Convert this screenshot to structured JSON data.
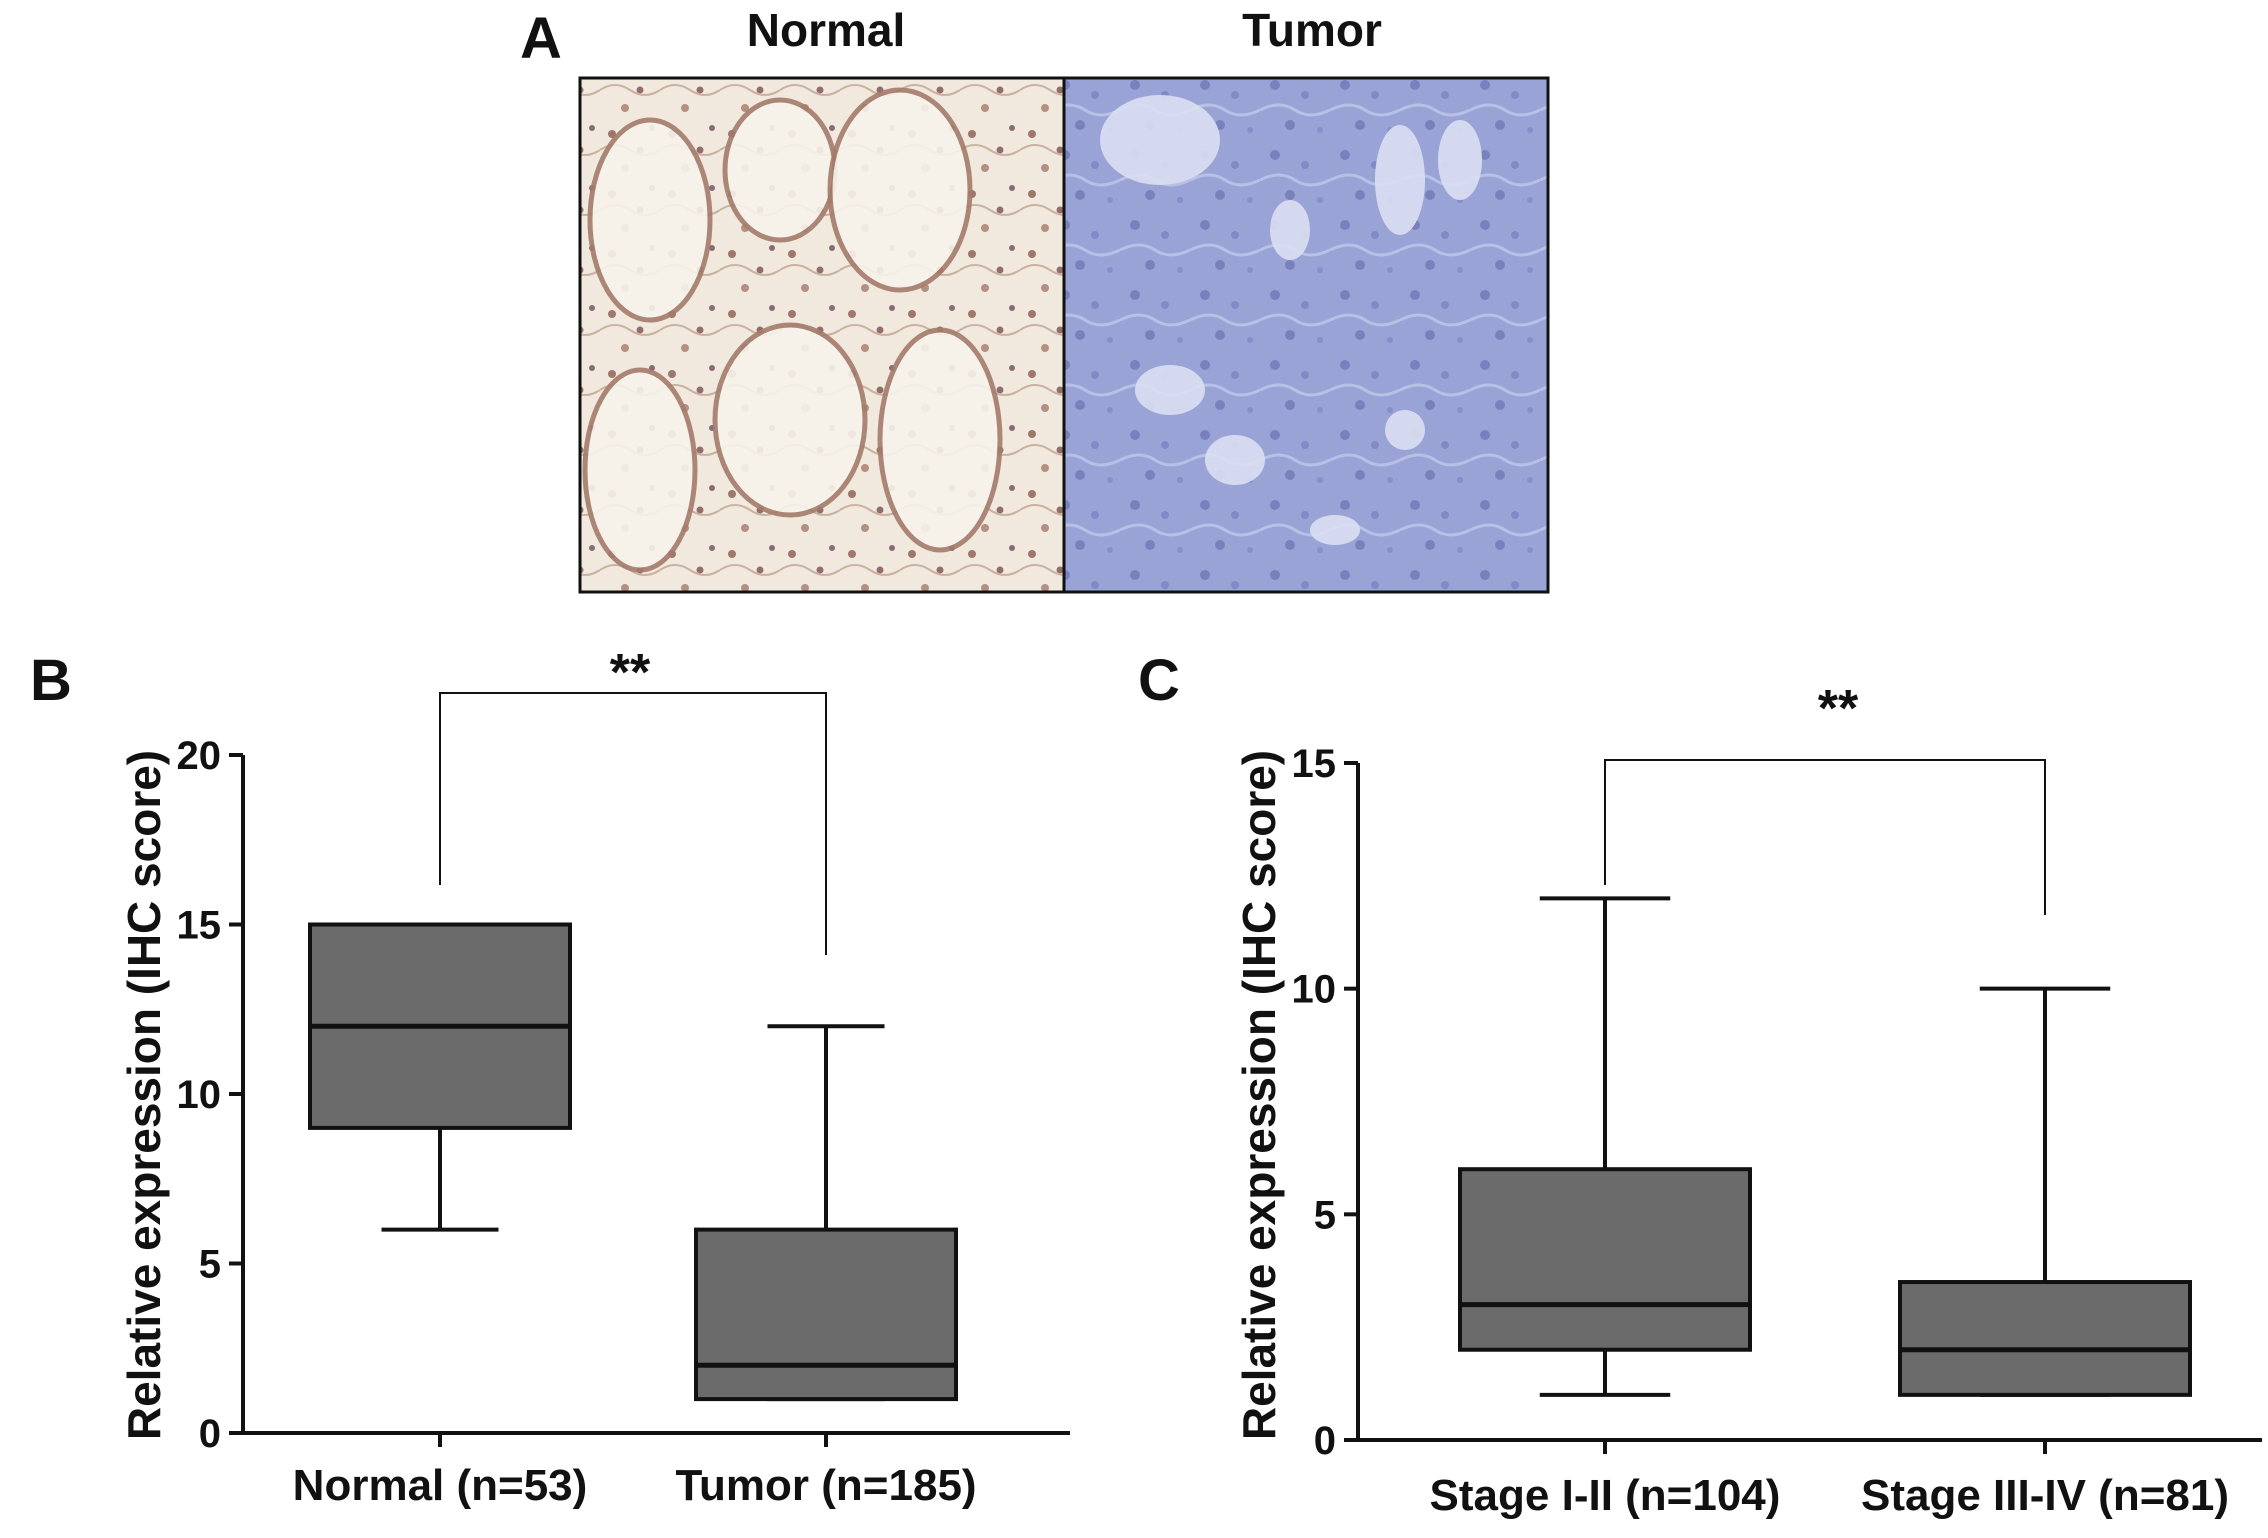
{
  "panel_a": {
    "letter": "A",
    "images": [
      {
        "title": "Normal",
        "stain": "brown nuclear/cytoplasmic staining"
      },
      {
        "title": "Tumor",
        "stain": "blue hematoxylin counterstain"
      }
    ]
  },
  "chart_data": [
    {
      "panel": "B",
      "type": "box",
      "ylabel": "Relative expression (IHC score)",
      "ylim": [
        0,
        20
      ],
      "yticks": [
        0,
        5,
        10,
        15,
        20
      ],
      "categories": [
        "Normal (n=53)",
        "Tumor (n=185)"
      ],
      "boxes": [
        {
          "min": 6,
          "q1": 9,
          "median": 12,
          "q3": 15,
          "max": 15
        },
        {
          "min": 1,
          "q1": 1,
          "median": 2,
          "q3": 6,
          "max": 12
        }
      ],
      "significance": "**",
      "box_color": "#6b6b6b"
    },
    {
      "panel": "C",
      "type": "box",
      "ylabel": "Relative expression (IHC score)",
      "ylim": [
        0,
        15
      ],
      "yticks": [
        0,
        5,
        10,
        15
      ],
      "categories": [
        "Stage I-II (n=104)",
        "Stage III-IV (n=81)"
      ],
      "boxes": [
        {
          "min": 1,
          "q1": 2,
          "median": 3,
          "q3": 6,
          "max": 12
        },
        {
          "min": 1,
          "q1": 1,
          "median": 2,
          "q3": 3.5,
          "max": 10
        }
      ],
      "significance": "**",
      "box_color": "#6b6b6b"
    }
  ]
}
